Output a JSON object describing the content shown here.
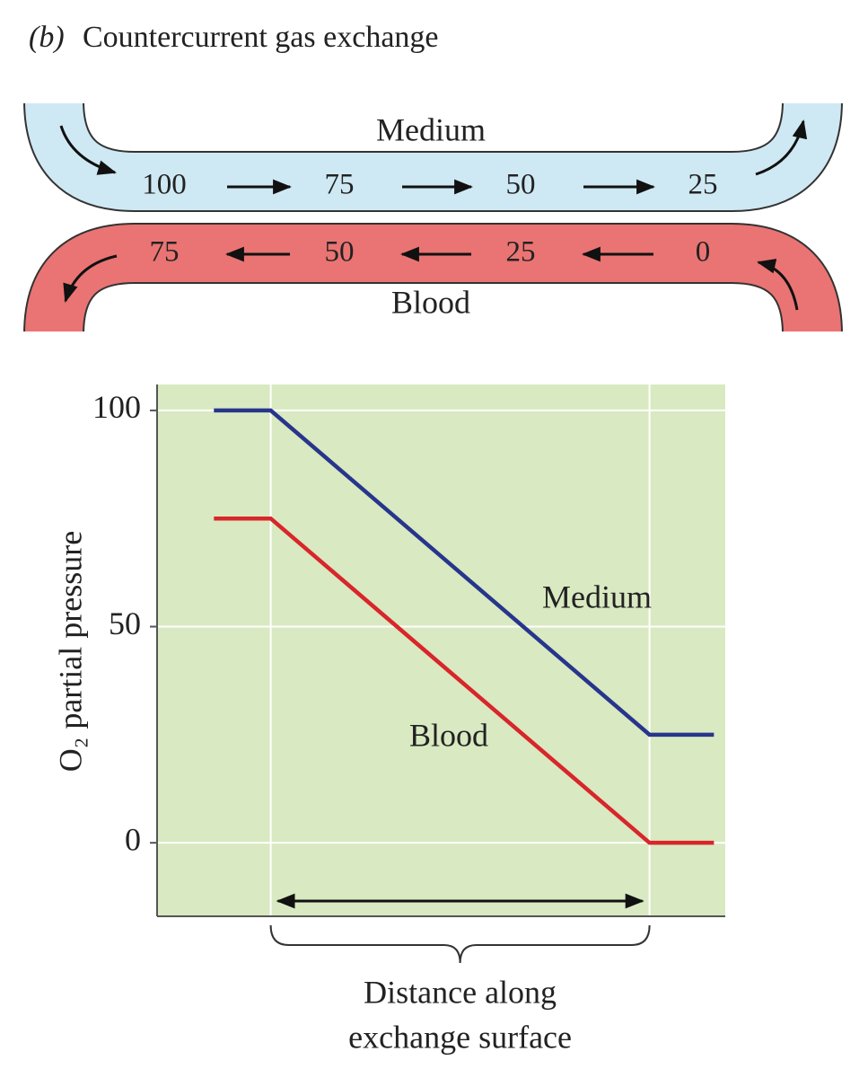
{
  "figure_label": "(b)",
  "title": "Countercurrent gas exchange",
  "diagram": {
    "medium": {
      "label": "Medium",
      "values": [
        100,
        75,
        50,
        25
      ]
    },
    "blood": {
      "label": "Blood",
      "values": [
        75,
        50,
        25,
        0
      ]
    }
  },
  "chart_data": {
    "type": "line",
    "ylabel": "O₂ partial pressure",
    "xlabel": [
      "Distance along",
      "exchange surface"
    ],
    "x": [
      -0.15,
      0,
      1,
      1.17
    ],
    "xlim": [
      -0.3,
      1.2
    ],
    "ylim": [
      -17,
      106
    ],
    "yticks": [
      0,
      50,
      100
    ],
    "grid": true,
    "series": [
      {
        "name": "Medium",
        "color": "#27358c",
        "values": [
          100,
          100,
          25,
          25
        ]
      },
      {
        "name": "Blood",
        "color": "#d8262b",
        "values": [
          75,
          75,
          0,
          0
        ]
      }
    ]
  }
}
